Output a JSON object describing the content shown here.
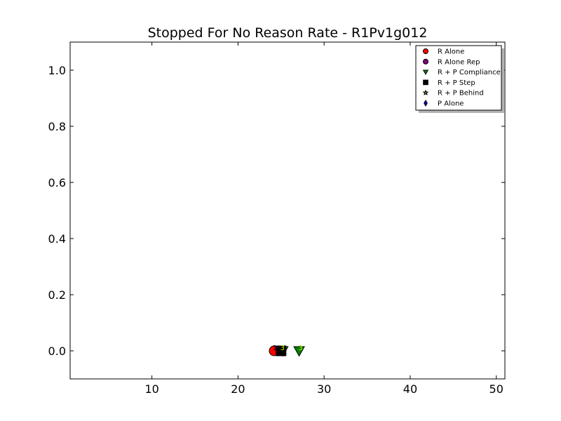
{
  "chart_data": {
    "type": "scatter",
    "title": "Stopped For No Reason Rate - R1Pv1g012",
    "xlabel": "",
    "ylabel": "",
    "xlim": [
      0.5,
      51
    ],
    "ylim": [
      -0.1,
      1.1
    ],
    "x_ticks": [
      10,
      20,
      30,
      40,
      50
    ],
    "y_ticks": [
      0.0,
      0.2,
      0.4,
      0.6,
      0.8,
      1.0
    ],
    "x_tick_labels": [
      "10",
      "20",
      "30",
      "40",
      "50"
    ],
    "y_tick_labels": [
      "0.0",
      "0.2",
      "0.4",
      "0.6",
      "0.8",
      "1.0"
    ],
    "grid": false,
    "legend_position": "top-right",
    "series": [
      {
        "name": "R Alone",
        "marker": "circle",
        "color": "#ff0000",
        "points": [
          {
            "x": 24.2,
            "y": 0.0,
            "label": "1"
          }
        ]
      },
      {
        "name": "R Alone Rep",
        "marker": "circle",
        "color": "#800080",
        "points": []
      },
      {
        "name": "R + P Compliance",
        "marker": "triangle-down",
        "color": "#008000",
        "points": [
          {
            "x": 25.2,
            "y": 0.0,
            "label": "3"
          },
          {
            "x": 27.1,
            "y": 0.0,
            "label": "3"
          }
        ]
      },
      {
        "name": "R + P Step",
        "marker": "square",
        "color": "#000000",
        "points": [
          {
            "x": 25.0,
            "y": 0.0,
            "label": "3"
          }
        ]
      },
      {
        "name": "R + P Behind",
        "marker": "star",
        "color": "#808000",
        "points": []
      },
      {
        "name": "P Alone",
        "marker": "diamond",
        "color": "#0000cc",
        "points": []
      }
    ]
  }
}
